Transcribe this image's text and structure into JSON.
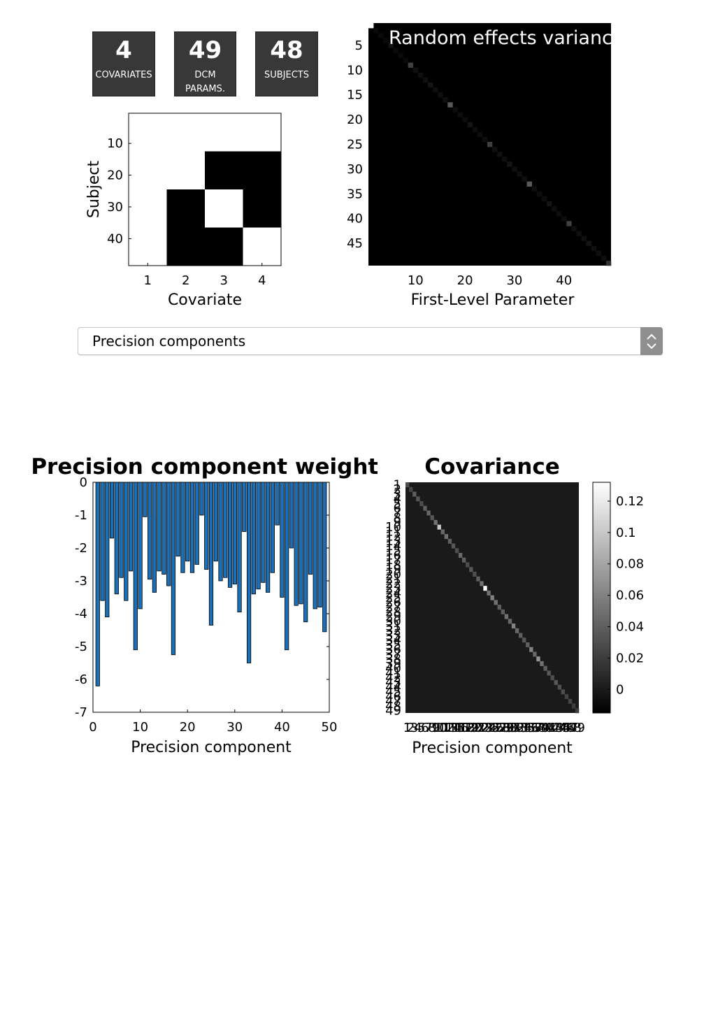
{
  "stats": [
    {
      "value": "4",
      "label_lines": [
        "COVARIATES"
      ]
    },
    {
      "value": "49",
      "label_lines": [
        "DCM",
        "PARAMS."
      ]
    },
    {
      "value": "48",
      "label_lines": [
        "SUBJECTS"
      ]
    }
  ],
  "dropdown": {
    "selected": "Precision components"
  },
  "colors": {
    "stat_bg": "#383838",
    "bar_fill": "#1a6fb6",
    "bar_edge": "#000000"
  },
  "chart_data": [
    {
      "type": "heatmap",
      "title": "",
      "xlabel": "Covariate",
      "ylabel": "Subject",
      "colormap": "gray",
      "x_ticks": [
        1,
        2,
        3,
        4
      ],
      "y_ticks": [
        10,
        20,
        30,
        40
      ],
      "n_rows": 48,
      "n_cols": 4,
      "row_blocks": [
        {
          "rows": [
            1,
            12
          ],
          "values": [
            1,
            1,
            1,
            1
          ]
        },
        {
          "rows": [
            13,
            24
          ],
          "values": [
            1,
            1,
            0,
            0
          ]
        },
        {
          "rows": [
            25,
            36
          ],
          "values": [
            1,
            0,
            1,
            0
          ]
        },
        {
          "rows": [
            37,
            48
          ],
          "values": [
            1,
            0,
            0,
            1
          ]
        }
      ]
    },
    {
      "type": "heatmap",
      "title": "Random effects variance",
      "xlabel": "First-Level Parameter",
      "ylabel": "",
      "colormap": "gray",
      "size": 49,
      "x_ticks": [
        10,
        20,
        30,
        40
      ],
      "y_ticks": [
        5,
        10,
        15,
        20,
        25,
        30,
        35,
        40,
        45
      ],
      "diagonal": [
        1.0,
        0.04,
        0.04,
        0.04,
        0.08,
        0.04,
        0.04,
        0.04,
        0.25,
        0.06,
        0.06,
        0.06,
        0.08,
        0.06,
        0.06,
        0.06,
        0.35,
        0.05,
        0.05,
        0.05,
        0.08,
        0.05,
        0.05,
        0.05,
        0.25,
        0.06,
        0.06,
        0.06,
        0.08,
        0.06,
        0.06,
        0.06,
        0.35,
        0.05,
        0.05,
        0.05,
        0.08,
        0.05,
        0.05,
        0.05,
        0.25,
        0.06,
        0.06,
        0.06,
        0.08,
        0.06,
        0.06,
        0.06,
        0.2
      ]
    },
    {
      "type": "bar",
      "title": "Precision component weights",
      "xlabel": "Precision component",
      "ylabel": "",
      "xlim": [
        0,
        50
      ],
      "ylim": [
        -7,
        0
      ],
      "x_ticks": [
        0,
        10,
        20,
        30,
        40,
        50
      ],
      "y_ticks": [
        0,
        -1,
        -2,
        -3,
        -4,
        -5,
        -6,
        -7
      ],
      "values": [
        -6.2,
        -3.6,
        -4.1,
        -1.7,
        -3.4,
        -2.9,
        -3.6,
        -2.7,
        -5.1,
        -3.85,
        -1.05,
        -2.95,
        -3.35,
        -2.7,
        -2.8,
        -3.15,
        -5.25,
        -2.25,
        -2.75,
        -2.4,
        -2.75,
        -2.5,
        -1.0,
        -2.65,
        -4.35,
        -2.4,
        -3.0,
        -2.9,
        -3.2,
        -3.1,
        -3.95,
        -1.5,
        -5.5,
        -3.4,
        -3.25,
        -3.05,
        -3.35,
        -2.75,
        -1.3,
        -3.5,
        -5.1,
        -2.0,
        -3.75,
        -3.7,
        -4.25,
        -2.8,
        -3.85,
        -3.8,
        -4.55
      ]
    },
    {
      "type": "heatmap",
      "title": "Covariance",
      "xlabel": "Precision component",
      "ylabel": "",
      "colormap": "gray",
      "size": 49,
      "colorbar_ticks": [
        0.12,
        0.1,
        0.08,
        0.06,
        0.04,
        0.02,
        0
      ],
      "clim": [
        -0.015,
        0.132
      ],
      "tick_labels": [
        "1",
        "2",
        "3",
        "4",
        "5",
        "6",
        "7",
        "8",
        "9",
        "10",
        "11",
        "12",
        "13",
        "14",
        "15",
        "16",
        "17",
        "18",
        "19",
        "20",
        "21",
        "22",
        "23",
        "24",
        "25",
        "26",
        "27",
        "28",
        "29",
        "30",
        "31",
        "32",
        "33",
        "34",
        "35",
        "36",
        "37",
        "38",
        "39",
        "40",
        "41",
        "42",
        "43",
        "44",
        "45",
        "46",
        "47",
        "48",
        "49"
      ],
      "diagonal": [
        0.03,
        0.025,
        0.04,
        0.035,
        0.03,
        0.04,
        0.045,
        0.035,
        0.05,
        0.1,
        0.045,
        0.05,
        0.04,
        0.035,
        0.03,
        0.045,
        0.04,
        0.03,
        0.035,
        0.03,
        0.04,
        0.05,
        0.13,
        0.05,
        0.06,
        0.05,
        0.04,
        0.04,
        0.05,
        0.045,
        0.06,
        0.045,
        0.04,
        0.035,
        0.04,
        0.06,
        0.045,
        0.07,
        0.05,
        0.04,
        0.035,
        0.03,
        0.035,
        0.03,
        0.03,
        0.025,
        0.025,
        0.02,
        0.02
      ],
      "off_diagonal_typical": 0.0
    }
  ]
}
